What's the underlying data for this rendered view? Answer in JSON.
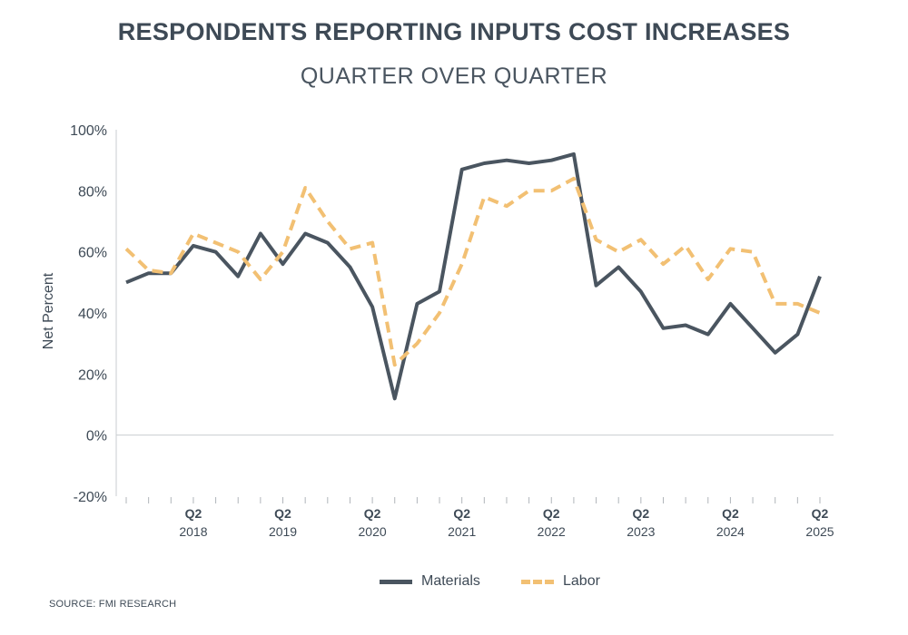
{
  "chart_data": {
    "type": "line",
    "title": "RESPONDENTS REPORTING INPUTS COST INCREASES",
    "subtitle": "QUARTER OVER QUARTER",
    "ylabel": "Net Percent",
    "xlabel": "",
    "ylim": [
      -20,
      100
    ],
    "yticks": [
      -20,
      0,
      20,
      40,
      60,
      80,
      100
    ],
    "ytick_labels": [
      "-20%",
      "0%",
      "20%",
      "40%",
      "60%",
      "80%",
      "100%"
    ],
    "quarter_count": 32,
    "x_tick_labels": [
      {
        "index": 3,
        "quarter": "Q2",
        "year": "2018"
      },
      {
        "index": 7,
        "quarter": "Q2",
        "year": "2019"
      },
      {
        "index": 11,
        "quarter": "Q2",
        "year": "2020"
      },
      {
        "index": 15,
        "quarter": "Q2",
        "year": "2021"
      },
      {
        "index": 19,
        "quarter": "Q2",
        "year": "2022"
      },
      {
        "index": 23,
        "quarter": "Q2",
        "year": "2023"
      },
      {
        "index": 27,
        "quarter": "Q2",
        "year": "2024"
      },
      {
        "index": 31,
        "quarter": "Q2",
        "year": "2025"
      }
    ],
    "series": [
      {
        "name": "Materials",
        "color": "#4a5560",
        "dash": "solid",
        "values": [
          50,
          53,
          53,
          62,
          60,
          52,
          66,
          56,
          66,
          63,
          55,
          42,
          12,
          43,
          47,
          87,
          89,
          90,
          89,
          90,
          92,
          49,
          55,
          47,
          35,
          36,
          33,
          43,
          35,
          27,
          33,
          52
        ]
      },
      {
        "name": "Labor",
        "color": "#f2c073",
        "dash": "dashed",
        "values": [
          61,
          54,
          53,
          66,
          63,
          60,
          51,
          60,
          81,
          70,
          61,
          63,
          23,
          30,
          40,
          56,
          78,
          75,
          80,
          80,
          84,
          64,
          60,
          64,
          56,
          62,
          51,
          61,
          60,
          43,
          43,
          40
        ]
      }
    ],
    "grid": false,
    "legend_position": "bottom-center"
  },
  "source": "SOURCE: FMI RESEARCH"
}
